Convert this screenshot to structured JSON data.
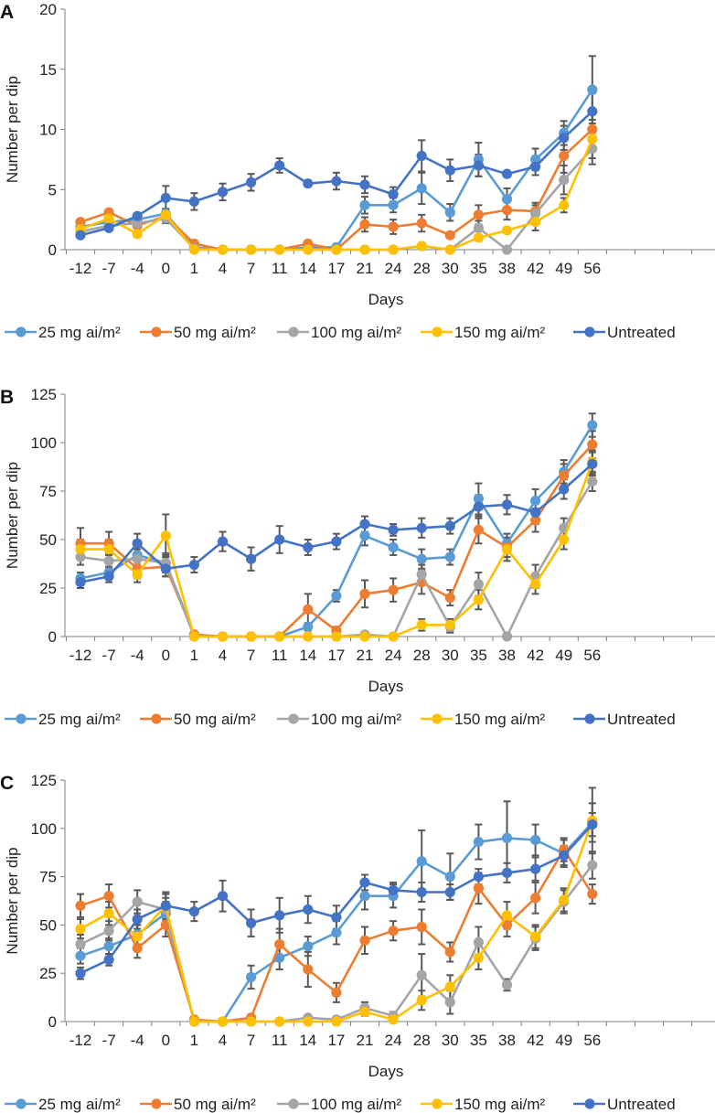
{
  "figure": {
    "colors": {
      "25": "#5B9BD5",
      "50": "#ED7D31",
      "100": "#A5A5A5",
      "150": "#FFC000",
      "untreated": "#4472C4",
      "error_bar": "#595959",
      "axis": "#7f7f7f"
    }
  },
  "chart_data": [
    {
      "type": "line",
      "panel": "A",
      "xlabel": "Days",
      "ylabel": "Number per dip",
      "ylim": [
        0,
        20
      ],
      "yticks": [
        0,
        5,
        10,
        15,
        20
      ],
      "categories": [
        "-12",
        "-7",
        "-4",
        "0",
        "1",
        "4",
        "7",
        "11",
        "14",
        "17",
        "21",
        "24",
        "28",
        "30",
        "35",
        "38",
        "42",
        "49",
        "56"
      ],
      "series": [
        {
          "name": "25 mg ai/m²",
          "key": "25",
          "values": [
            1.9,
            2.3,
            2.5,
            3.0,
            0.2,
            0.0,
            0.0,
            0.0,
            0.2,
            0.2,
            3.7,
            3.7,
            5.1,
            3.1,
            7.5,
            4.2,
            7.5,
            9.7,
            13.3
          ],
          "err": [
            0.4,
            0.4,
            0.4,
            0.5,
            0.2,
            0.1,
            0.1,
            0.1,
            0.2,
            0.2,
            0.7,
            0.6,
            1.3,
            0.7,
            1.4,
            0.9,
            0.9,
            1.0,
            2.8
          ]
        },
        {
          "name": "50 mg ai/m²",
          "key": "50",
          "values": [
            2.3,
            3.1,
            2.0,
            2.8,
            0.5,
            0.0,
            0.0,
            0.0,
            0.5,
            0.0,
            2.1,
            1.9,
            2.2,
            1.2,
            2.9,
            3.3,
            3.2,
            7.8,
            10.0
          ],
          "err": [
            0.4,
            0.5,
            0.5,
            0.6,
            0.3,
            0.1,
            0.1,
            0.1,
            0.3,
            0.1,
            0.6,
            0.6,
            0.7,
            0.5,
            0.8,
            0.8,
            0.7,
            1.4,
            1.5
          ]
        },
        {
          "name": "100 mg ai/m²",
          "key": "100",
          "values": [
            1.5,
            2.0,
            2.2,
            2.6,
            0.1,
            0.0,
            0.0,
            0.0,
            0.0,
            0.0,
            0.0,
            0.0,
            0.3,
            0.0,
            1.8,
            0.0,
            3.0,
            5.8,
            8.4
          ],
          "err": [
            0.3,
            0.4,
            0.5,
            0.5,
            0.1,
            0.1,
            0.1,
            0.1,
            0.1,
            0.1,
            0.1,
            0.1,
            0.2,
            0.1,
            0.6,
            0.1,
            0.7,
            1.2,
            1.3
          ]
        },
        {
          "name": "150 mg ai/m²",
          "key": "150",
          "values": [
            1.7,
            2.6,
            1.3,
            2.9,
            0.0,
            0.0,
            0.0,
            0.0,
            0.0,
            0.0,
            0.0,
            0.0,
            0.3,
            0.0,
            1.0,
            1.6,
            2.3,
            3.7,
            9.2
          ],
          "err": [
            0.3,
            0.4,
            0.4,
            0.5,
            0.1,
            0.1,
            0.1,
            0.1,
            0.1,
            0.1,
            0.1,
            0.1,
            0.2,
            0.1,
            0.4,
            0.5,
            0.7,
            0.6,
            1.6
          ]
        },
        {
          "name": "Untreated",
          "key": "untreated",
          "values": [
            1.2,
            1.8,
            2.8,
            4.3,
            4.0,
            4.8,
            5.6,
            7.0,
            5.5,
            5.7,
            5.4,
            4.6,
            7.8,
            6.6,
            7.0,
            6.3,
            6.9,
            9.3,
            11.5
          ],
          "err": [
            0.3,
            0.3,
            0.4,
            1.0,
            0.7,
            0.7,
            0.7,
            0.6,
            0.5,
            0.7,
            0.7,
            0.6,
            1.3,
            0.9,
            0.9,
            0.3,
            0.7,
            1.0,
            1.5
          ]
        }
      ]
    },
    {
      "type": "line",
      "panel": "B",
      "xlabel": "Days",
      "ylabel": "Number per dip",
      "ylim": [
        0,
        125
      ],
      "yticks": [
        0,
        25,
        50,
        75,
        100,
        125
      ],
      "categories": [
        "-12",
        "-7",
        "-4",
        "0",
        "1",
        "4",
        "7",
        "11",
        "14",
        "17",
        "21",
        "24",
        "28",
        "30",
        "35",
        "38",
        "42",
        "49",
        "56"
      ],
      "series": [
        {
          "name": "25 mg ai/m²",
          "key": "25",
          "values": [
            30,
            33,
            42,
            38,
            1,
            0,
            0,
            0,
            5,
            21,
            52,
            46,
            40,
            41,
            71,
            48,
            70,
            85,
            109
          ],
          "err": [
            3,
            3,
            5,
            4,
            1,
            0.5,
            0.5,
            0.5,
            2,
            3,
            5,
            4,
            5,
            4,
            8,
            5,
            6,
            6,
            6
          ]
        },
        {
          "name": "50 mg ai/m²",
          "key": "50",
          "values": [
            48,
            48,
            35,
            36,
            1,
            0,
            0,
            0,
            14,
            3,
            22,
            24,
            28,
            20,
            55,
            46,
            60,
            83,
            99
          ],
          "err": [
            8,
            6,
            5,
            5,
            1,
            0.5,
            0.5,
            0.5,
            8,
            2,
            7,
            6,
            6,
            4,
            7,
            5,
            6,
            6,
            7
          ]
        },
        {
          "name": "100 mg ai/m²",
          "key": "100",
          "values": [
            41,
            39,
            40,
            38,
            0,
            0,
            0,
            0,
            0,
            0,
            1,
            0,
            32,
            5,
            27,
            0,
            31,
            56,
            80
          ],
          "err": [
            4,
            4,
            5,
            5,
            0.5,
            0.5,
            0.5,
            0.5,
            0.5,
            0.5,
            1,
            0.5,
            5,
            3,
            6,
            0.5,
            6,
            5,
            5
          ]
        },
        {
          "name": "150 mg ai/m²",
          "key": "150",
          "values": [
            45,
            45,
            32,
            52,
            0,
            0,
            0,
            0,
            0,
            0,
            0,
            0,
            6,
            6,
            19,
            45,
            27,
            50,
            90
          ],
          "err": [
            5,
            5,
            4,
            11,
            0.5,
            0.5,
            0.5,
            0.5,
            0.5,
            0.5,
            0.5,
            0.5,
            3,
            3,
            5,
            6,
            5,
            5,
            6
          ]
        },
        {
          "name": "Untreated",
          "key": "untreated",
          "values": [
            28,
            31,
            48,
            35,
            37,
            49,
            40,
            50,
            46,
            49,
            58,
            55,
            56,
            57,
            67,
            68,
            64,
            76,
            89
          ],
          "err": [
            3,
            3,
            5,
            4,
            4,
            5,
            6,
            7,
            4,
            4,
            4,
            3,
            5,
            4,
            6,
            5,
            6,
            5,
            6
          ]
        }
      ]
    },
    {
      "type": "line",
      "panel": "C",
      "xlabel": "Days",
      "ylabel": "Number per dip",
      "ylim": [
        0,
        125
      ],
      "yticks": [
        0,
        25,
        50,
        75,
        100,
        125
      ],
      "categories": [
        "-12",
        "-7",
        "-4",
        "0",
        "1",
        "4",
        "7",
        "11",
        "14",
        "17",
        "21",
        "24",
        "28",
        "30",
        "35",
        "38",
        "42",
        "49",
        "56"
      ],
      "series": [
        {
          "name": "25 mg ai/m²",
          "key": "25",
          "values": [
            34,
            39,
            45,
            56,
            0,
            0,
            23,
            33,
            39,
            46,
            65,
            65,
            83,
            75,
            93,
            95,
            94,
            87,
            103
          ],
          "err": [
            4,
            4,
            5,
            6,
            0.5,
            0.5,
            6,
            6,
            5,
            6,
            7,
            6,
            16,
            12,
            9,
            19,
            8,
            7,
            10
          ]
        },
        {
          "name": "50 mg ai/m²",
          "key": "50",
          "values": [
            60,
            65,
            38,
            50,
            1,
            0,
            2,
            40,
            27,
            15,
            42,
            47,
            49,
            36,
            69,
            50,
            64,
            89,
            66
          ],
          "err": [
            6,
            6,
            5,
            6,
            1,
            0.5,
            1,
            8,
            9,
            5,
            7,
            5,
            9,
            5,
            8,
            6,
            8,
            6,
            5
          ]
        },
        {
          "name": "100 mg ai/m²",
          "key": "100",
          "values": [
            40,
            47,
            62,
            58,
            0,
            0,
            0,
            0,
            2,
            1,
            7,
            3,
            24,
            10,
            41,
            19,
            43,
            62,
            81
          ],
          "err": [
            5,
            5,
            6,
            6,
            0.5,
            0.5,
            0.5,
            0.5,
            1,
            1,
            3,
            2,
            11,
            6,
            8,
            3,
            6,
            6,
            7
          ]
        },
        {
          "name": "150 mg ai/m²",
          "key": "150",
          "values": [
            48,
            56,
            44,
            60,
            0,
            0,
            0,
            0,
            0,
            0,
            5,
            1,
            11,
            18,
            33,
            55,
            44,
            63,
            104
          ],
          "err": [
            5,
            6,
            6,
            7,
            0.5,
            0.5,
            0.5,
            0.5,
            0.5,
            0.5,
            2,
            1,
            5,
            6,
            6,
            7,
            6,
            6,
            17
          ]
        },
        {
          "name": "Untreated",
          "key": "untreated",
          "values": [
            25,
            32,
            53,
            60,
            57,
            65,
            51,
            55,
            58,
            54,
            72,
            68,
            67,
            67,
            75,
            77,
            79,
            86,
            102
          ],
          "err": [
            3,
            3,
            5,
            6,
            5,
            8,
            7,
            9,
            7,
            6,
            4,
            4,
            5,
            4,
            4,
            5,
            6,
            5,
            6
          ]
        }
      ]
    }
  ]
}
